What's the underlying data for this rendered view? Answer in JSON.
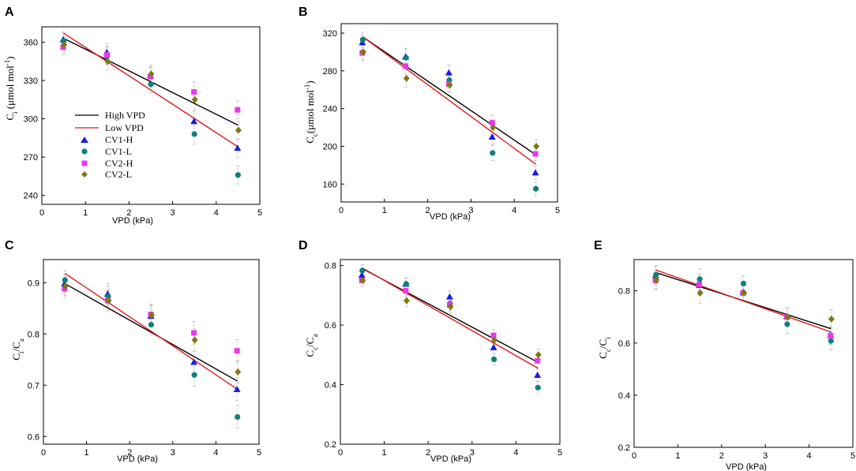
{
  "colors": {
    "high_line": "#000000",
    "low_line": "#e0191d",
    "cv1h": "#1b1ee0",
    "cv1l": "#127e7c",
    "cv2h": "#ee35ee",
    "cv2l": "#7e7a10",
    "errorbar": "#c8c8c8"
  },
  "series_names": [
    "CV1-H",
    "CV1-L",
    "CV2-H",
    "CV2-L"
  ],
  "series_keys": [
    "cv1h",
    "cv1l",
    "cv2h",
    "cv2l"
  ],
  "series_shapes": [
    "triangle",
    "circle",
    "square",
    "diamond"
  ],
  "legend": {
    "high_line": "High VPD",
    "low_line": "Low VPD",
    "cv1h": "CV1-H",
    "cv1l": "CV1-L",
    "cv2h": "CV2-H",
    "cv2l": "CV2-L"
  },
  "chart_data": [
    {
      "panel": "A",
      "type": "scatter",
      "xlabel": "VPD (kPa)",
      "ylabel": {
        "main": "C",
        "sub": "i",
        "rest": " (μmol mol",
        "sup": "-1",
        "end": ")"
      },
      "xlim": [
        0,
        5
      ],
      "ylim": [
        233,
        372
      ],
      "xticks": [
        0,
        1,
        2,
        3,
        4,
        5
      ],
      "yticks": [
        240,
        270,
        300,
        330,
        360
      ],
      "x": [
        0.5,
        1.5,
        2.5,
        3.5,
        4.5
      ],
      "series": [
        {
          "name": "CV1-H",
          "values": [
            362,
            352,
            334,
            298,
            277
          ]
        },
        {
          "name": "CV1-L",
          "values": [
            361,
            349,
            327,
            288,
            256
          ]
        },
        {
          "name": "CV2-H",
          "values": [
            356,
            350,
            333,
            321,
            307
          ]
        },
        {
          "name": "CV2-L",
          "values": [
            358,
            345,
            335,
            315,
            291
          ]
        }
      ],
      "errors": [
        6,
        7,
        7,
        8,
        7
      ],
      "fits": [
        {
          "name": "High VPD",
          "x": [
            0.5,
            4.5
          ],
          "y": [
            363,
            295
          ]
        },
        {
          "name": "Low VPD",
          "x": [
            0.5,
            4.5
          ],
          "y": [
            367,
            278
          ]
        }
      ],
      "legend": true
    },
    {
      "panel": "B",
      "type": "scatter",
      "xlabel": "VPD (kPa)",
      "ylabel": {
        "main": "C",
        "sub": "c",
        "rest": "(μmol mol",
        "sup": "-1",
        "end": ")"
      },
      "xlim": [
        0,
        5
      ],
      "ylim": [
        141,
        330
      ],
      "xticks": [
        0,
        1,
        2,
        3,
        4,
        5
      ],
      "yticks": [
        160,
        200,
        240,
        280,
        320
      ],
      "x": [
        0.5,
        1.5,
        2.5,
        3.5,
        4.5
      ],
      "series": [
        {
          "name": "CV1-H",
          "values": [
            310,
            295,
            278,
            210,
            172
          ]
        },
        {
          "name": "CV1-L",
          "values": [
            313,
            294,
            270,
            193,
            155
          ]
        },
        {
          "name": "CV2-H",
          "values": [
            299,
            285,
            266,
            225,
            192
          ]
        },
        {
          "name": "CV2-L",
          "values": [
            300,
            272,
            265,
            220,
            200
          ]
        }
      ],
      "errors": [
        8,
        9,
        8,
        8,
        7
      ],
      "fits": [
        {
          "name": "High VPD",
          "x": [
            0.5,
            4.5
          ],
          "y": [
            316,
            191
          ]
        },
        {
          "name": "Low VPD",
          "x": [
            0.5,
            4.5
          ],
          "y": [
            316,
            181
          ]
        }
      ],
      "legend": false
    },
    {
      "panel": "C",
      "type": "scatter",
      "xlabel": "VPD (kPa)",
      "ylabel": {
        "main": "C",
        "sub": "i",
        "rest": "/C",
        "sub2": "a"
      },
      "xlim": [
        0,
        5
      ],
      "ylim": [
        0.585,
        0.945
      ],
      "xticks": [
        0,
        1,
        2,
        3,
        4,
        5
      ],
      "yticks": [
        0.6,
        0.7,
        0.8,
        0.9
      ],
      "x": [
        0.5,
        1.5,
        2.5,
        3.5,
        4.5
      ],
      "series": [
        {
          "name": "CV1-H",
          "values": [
            0.898,
            0.878,
            0.835,
            0.745,
            0.692
          ]
        },
        {
          "name": "CV1-L",
          "values": [
            0.905,
            0.873,
            0.818,
            0.72,
            0.638
          ]
        },
        {
          "name": "CV2-H",
          "values": [
            0.888,
            0.865,
            0.838,
            0.802,
            0.767
          ]
        },
        {
          "name": "CV2-L",
          "values": [
            0.893,
            0.865,
            0.837,
            0.788,
            0.726
          ]
        }
      ],
      "errors": [
        0.018,
        0.02,
        0.02,
        0.022,
        0.022
      ],
      "fits": [
        {
          "name": "High VPD",
          "x": [
            0.5,
            4.5
          ],
          "y": [
            0.898,
            0.708
          ]
        },
        {
          "name": "Low VPD",
          "x": [
            0.5,
            4.5
          ],
          "y": [
            0.918,
            0.692
          ]
        }
      ],
      "legend": false
    },
    {
      "panel": "D",
      "type": "scatter",
      "xlabel": "VPD (kPa)",
      "ylabel": {
        "main": "C",
        "sub": "c",
        "rest": "/C",
        "sub2": "a"
      },
      "xlim": [
        0,
        5
      ],
      "ylim": [
        0.2,
        0.82
      ],
      "xticks": [
        0,
        1,
        2,
        3,
        4,
        5
      ],
      "yticks": [
        0.2,
        0.4,
        0.6,
        0.8
      ],
      "x": [
        0.5,
        1.5,
        2.5,
        3.5,
        4.5
      ],
      "series": [
        {
          "name": "CV1-H",
          "values": [
            0.768,
            0.738,
            0.695,
            0.525,
            0.432
          ]
        },
        {
          "name": "CV1-L",
          "values": [
            0.783,
            0.738,
            0.672,
            0.485,
            0.39
          ]
        },
        {
          "name": "CV2-H",
          "values": [
            0.75,
            0.715,
            0.668,
            0.565,
            0.48
          ]
        },
        {
          "name": "CV2-L",
          "values": [
            0.75,
            0.682,
            0.662,
            0.55,
            0.5
          ]
        }
      ],
      "errors": [
        0.02,
        0.02,
        0.02,
        0.02,
        0.02
      ],
      "fits": [
        {
          "name": "High VPD",
          "x": [
            0.5,
            4.5
          ],
          "y": [
            0.79,
            0.475
          ]
        },
        {
          "name": "Low VPD",
          "x": [
            0.5,
            4.5
          ],
          "y": [
            0.792,
            0.455
          ]
        }
      ],
      "legend": false
    },
    {
      "panel": "E",
      "type": "scatter",
      "xlabel": "VPD (kPa)",
      "ylabel": {
        "main": "C",
        "sub": "c",
        "rest": "/C",
        "sub2": "i"
      },
      "xlim": [
        0,
        5
      ],
      "ylim": [
        0.2,
        0.92
      ],
      "xticks": [
        0,
        1,
        2,
        3,
        4,
        5
      ],
      "yticks": [
        0.2,
        0.4,
        0.6,
        0.8
      ],
      "x": [
        0.5,
        1.5,
        2.5,
        3.5,
        4.5
      ],
      "series": [
        {
          "name": "CV1-H",
          "values": [
            0.858,
            0.822,
            0.795,
            0.7,
            0.63
          ]
        },
        {
          "name": "CV1-L",
          "values": [
            0.862,
            0.845,
            0.828,
            0.672,
            0.608
          ]
        },
        {
          "name": "CV2-H",
          "values": [
            0.84,
            0.825,
            0.792,
            0.7,
            0.628
          ]
        },
        {
          "name": "CV2-L",
          "values": [
            0.842,
            0.792,
            0.792,
            0.7,
            0.692
          ]
        }
      ],
      "errors": [
        0.035,
        0.04,
        0.03,
        0.035,
        0.035
      ],
      "fits": [
        {
          "name": "High VPD",
          "x": [
            0.5,
            4.5
          ],
          "y": [
            0.87,
            0.655
          ]
        },
        {
          "name": "Low VPD",
          "x": [
            0.5,
            4.5
          ],
          "y": [
            0.88,
            0.642
          ]
        }
      ],
      "legend": false
    }
  ]
}
